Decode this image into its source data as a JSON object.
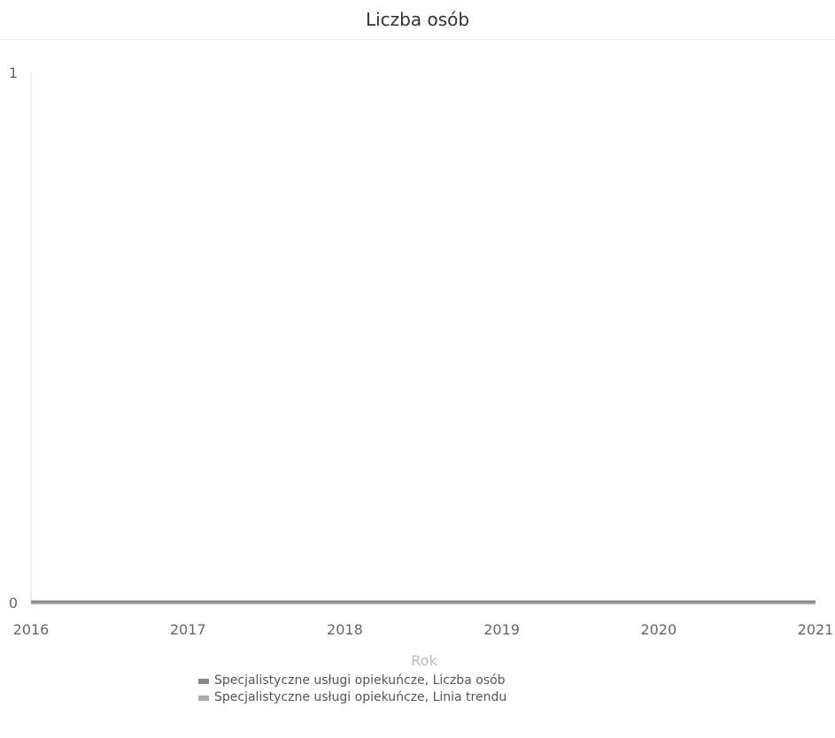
{
  "title": "Liczba osób",
  "chart_data": {
    "type": "line",
    "title": "Liczba osób",
    "xlabel": "Rok",
    "ylabel": "",
    "x": [
      2016,
      2017,
      2018,
      2019,
      2020,
      2021
    ],
    "xlim": [
      2016,
      2021
    ],
    "ylim": [
      0,
      1
    ],
    "x_ticks": [
      "2016",
      "2017",
      "2018",
      "2019",
      "2020",
      "2021"
    ],
    "y_ticks": [
      "0",
      "1"
    ],
    "grid": false,
    "legend_position": "bottom",
    "series": [
      {
        "name": "Specjalistyczne usługi opiekuńcze, Liczba osób",
        "color": "#888888",
        "values": [
          0,
          0,
          0,
          0,
          0,
          0
        ]
      },
      {
        "name": "Specjalistyczne usługi opiekuńcze, Linia trendu",
        "color": "#aaaaaa",
        "values": [
          0,
          0,
          0,
          0,
          0,
          0
        ]
      }
    ]
  }
}
